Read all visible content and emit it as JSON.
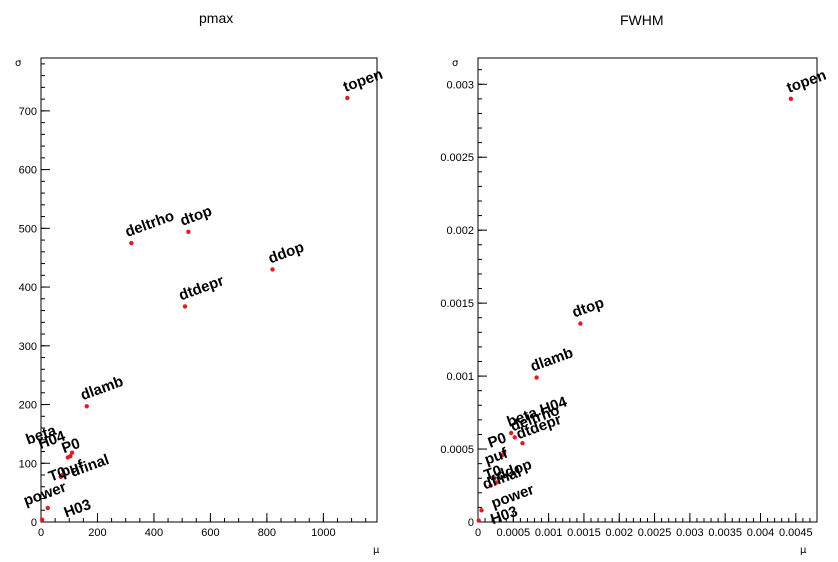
{
  "chart_data": [
    {
      "type": "scatter",
      "title": "pmax",
      "xlabel": "μ",
      "ylabel": "σ",
      "xlim": [
        0,
        1190
      ],
      "ylim": [
        0,
        790
      ],
      "x_ticks": [
        "0",
        "200",
        "400",
        "600",
        "800",
        "1000"
      ],
      "y_ticks": [
        "0",
        "100",
        "200",
        "300",
        "400",
        "500",
        "600",
        "700"
      ],
      "marker_color": "#e41a1c",
      "points": [
        {
          "label": "topen",
          "x": 1085,
          "y": 722
        },
        {
          "label": "dtop",
          "x": 522,
          "y": 494
        },
        {
          "label": "deltrho",
          "x": 320,
          "y": 475
        },
        {
          "label": "ddop",
          "x": 820,
          "y": 430
        },
        {
          "label": "dtdepr",
          "x": 510,
          "y": 367
        },
        {
          "label": "dlamb",
          "x": 162,
          "y": 197
        },
        {
          "label": "beta",
          "x": 110,
          "y": 118
        },
        {
          "label": "H04",
          "x": 104,
          "y": 112
        },
        {
          "label": "P0",
          "x": 95,
          "y": 110
        },
        {
          "label": "puf",
          "x": 84,
          "y": 80
        },
        {
          "label": "dfinal",
          "x": 76,
          "y": 80
        },
        {
          "label": "T0",
          "x": 70,
          "y": 77
        },
        {
          "label": "power",
          "x": 24,
          "y": 24
        },
        {
          "label": "H03",
          "x": 4,
          "y": 4
        }
      ]
    },
    {
      "type": "scatter",
      "title": "FWHM",
      "xlabel": "μ",
      "ylabel": "σ",
      "xlim": [
        0,
        0.0048
      ],
      "ylim": [
        0,
        0.00318
      ],
      "x_ticks": [
        "0",
        "0.0005",
        "0.001",
        "0.0015",
        "0.002",
        "0.0025",
        "0.003",
        "0.0035",
        "0.004",
        "0.0045"
      ],
      "y_ticks": [
        "0",
        "0.0005",
        "0.001",
        "0.0015",
        "0.002",
        "0.0025",
        "0.003"
      ],
      "marker_color": "#e41a1c",
      "points": [
        {
          "label": "topen",
          "x": 0.00443,
          "y": 0.0029
        },
        {
          "label": "dtop",
          "x": 0.00145,
          "y": 0.00136
        },
        {
          "label": "dlamb",
          "x": 0.00083,
          "y": 0.00099
        },
        {
          "label": "beta H04",
          "x": 0.00047,
          "y": 0.00061
        },
        {
          "label": "deltrho",
          "x": 0.00052,
          "y": 0.00058
        },
        {
          "label": "dtdepr",
          "x": 0.00063,
          "y": 0.00054
        },
        {
          "label": "P0",
          "x": 0.00037,
          "y": 0.00048
        },
        {
          "label": "puf",
          "x": 0.00035,
          "y": 0.00046
        },
        {
          "label": "T0",
          "x": 0.00023,
          "y": 0.0003
        },
        {
          "label": "ddop",
          "x": 0.00026,
          "y": 0.00027
        },
        {
          "label": "dfinal",
          "x": 0.00018,
          "y": 0.00025
        },
        {
          "label": "power",
          "x": 5e-05,
          "y": 8e-05
        },
        {
          "label": "H03",
          "x": 1e-05,
          "y": 1e-05
        }
      ]
    }
  ]
}
